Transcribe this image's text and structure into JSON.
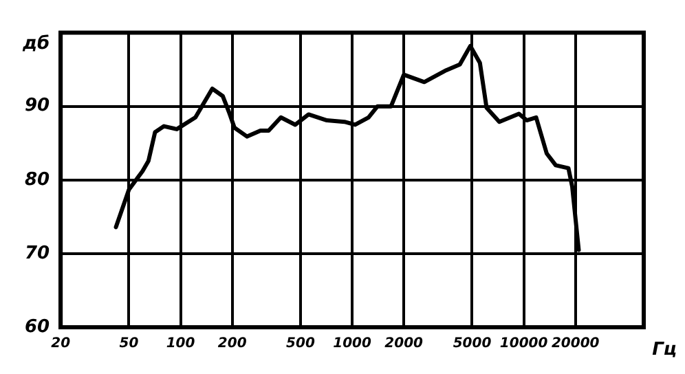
{
  "chart_data": {
    "type": "line",
    "xlabel": "Гц",
    "ylabel": "дб",
    "log": "x",
    "grid": true,
    "legend": false,
    "marker": "none",
    "line_style": "solid",
    "xlim": [
      20,
      50000
    ],
    "xticks": [
      20,
      50,
      100,
      200,
      500,
      1000,
      2000,
      5000,
      10000,
      20000
    ],
    "ylim": [
      60,
      100
    ],
    "yticks": [
      60,
      70,
      80,
      90
    ],
    "series": [
      {
        "color": "#000000",
        "x": [
          42,
          50,
          60,
          65,
          71,
          80,
          95,
          122,
          153,
          176,
          193,
          206,
          244,
          292,
          326,
          384,
          466,
          557,
          632,
          712,
          902,
          1040,
          1245,
          1404,
          1684,
          2000,
          2630,
          3530,
          4240,
          4880,
          5550,
          6070,
          7200,
          9370,
          10400,
          11800,
          13600,
          15350,
          18200,
          19150,
          20900
        ],
        "values": [
          73.6,
          78.7,
          81.2,
          82.6,
          86.5,
          87.3,
          86.9,
          88.5,
          92.4,
          91.4,
          89,
          87.1,
          85.9,
          86.7,
          86.7,
          88.5,
          87.5,
          88.9,
          88.5,
          88.1,
          87.9,
          87.5,
          88.5,
          90,
          90,
          94.3,
          93.3,
          94.9,
          95.7,
          98.2,
          95.9,
          89.8,
          87.9,
          89,
          88.1,
          88.5,
          83.6,
          82,
          81.6,
          79.1,
          70.5
        ]
      }
    ]
  }
}
